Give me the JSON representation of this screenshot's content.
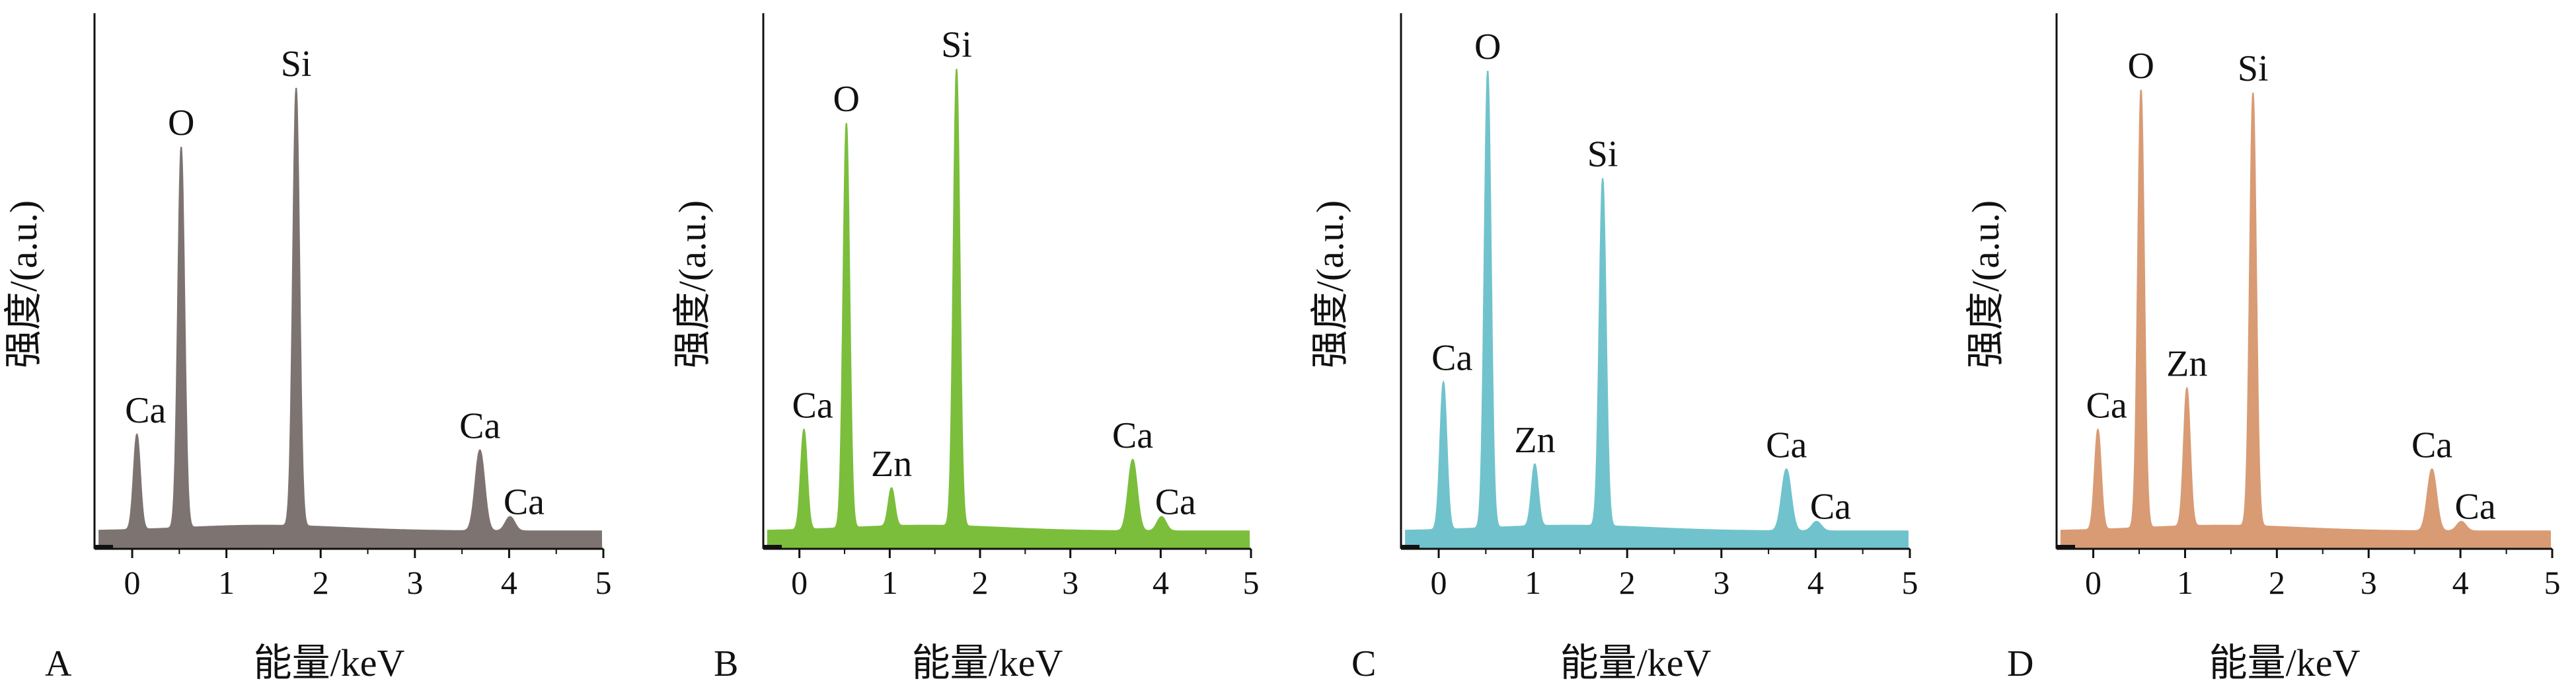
{
  "chart_data": [
    {
      "type": "area",
      "panel": "A",
      "xlabel": "能量/keV",
      "ylabel": "强度/(a.u.)",
      "xticks": [
        "0",
        "1",
        "2",
        "3",
        "4",
        "5"
      ],
      "xlim": [
        -0.4,
        5.0
      ],
      "ylim": [
        0,
        100
      ],
      "color": "#7d7472",
      "peaks": [
        {
          "label": "Ca",
          "x": 0.05,
          "y": 20
        },
        {
          "label": "O",
          "x": 0.52,
          "y": 80
        },
        {
          "label": "Si",
          "x": 1.74,
          "y": 92
        },
        {
          "label": "Ca",
          "x": 3.69,
          "y": 17
        },
        {
          "label": "Ca",
          "x": 4.01,
          "y": 3
        }
      ]
    },
    {
      "type": "area",
      "panel": "B",
      "xlabel": "能量/keV",
      "ylabel": "强度/(a.u.)",
      "xticks": [
        "0",
        "1",
        "2",
        "3",
        "4",
        "5"
      ],
      "xlim": [
        -0.4,
        5.0
      ],
      "ylim": [
        0,
        100
      ],
      "color": "#7bbe3c",
      "peaks": [
        {
          "label": "Ca",
          "x": 0.05,
          "y": 21
        },
        {
          "label": "O",
          "x": 0.52,
          "y": 85
        },
        {
          "label": "Zn",
          "x": 1.02,
          "y": 8
        },
        {
          "label": "Si",
          "x": 1.74,
          "y": 96
        },
        {
          "label": "Ca",
          "x": 3.69,
          "y": 15
        },
        {
          "label": "Ca",
          "x": 4.01,
          "y": 3
        }
      ]
    },
    {
      "type": "area",
      "panel": "C",
      "xlabel": "能量/keV",
      "ylabel": "强度/(a.u.)",
      "xticks": [
        "0",
        "1",
        "2",
        "3",
        "4",
        "5"
      ],
      "xlim": [
        -0.4,
        5.0
      ],
      "ylim": [
        0,
        100
      ],
      "color": "#70c3cc",
      "peaks": [
        {
          "label": "Ca",
          "x": 0.05,
          "y": 31
        },
        {
          "label": "O",
          "x": 0.52,
          "y": 96
        },
        {
          "label": "Zn",
          "x": 1.02,
          "y": 13
        },
        {
          "label": "Si",
          "x": 1.74,
          "y": 73
        },
        {
          "label": "Ca",
          "x": 3.69,
          "y": 13
        },
        {
          "label": "Ca",
          "x": 4.01,
          "y": 2
        }
      ]
    },
    {
      "type": "area",
      "panel": "D",
      "xlabel": "能量/keV",
      "ylabel": "强度/(a.u.)",
      "xticks": [
        "0",
        "1",
        "2",
        "3",
        "4",
        "5"
      ],
      "xlim": [
        -0.4,
        5.0
      ],
      "ylim": [
        0,
        100
      ],
      "color": "#d99b74",
      "peaks": [
        {
          "label": "Ca",
          "x": 0.05,
          "y": 21
        },
        {
          "label": "O",
          "x": 0.52,
          "y": 92
        },
        {
          "label": "Zn",
          "x": 1.02,
          "y": 29
        },
        {
          "label": "Si",
          "x": 1.74,
          "y": 91
        },
        {
          "label": "Ca",
          "x": 3.69,
          "y": 13
        },
        {
          "label": "Ca",
          "x": 4.01,
          "y": 2
        }
      ]
    }
  ]
}
